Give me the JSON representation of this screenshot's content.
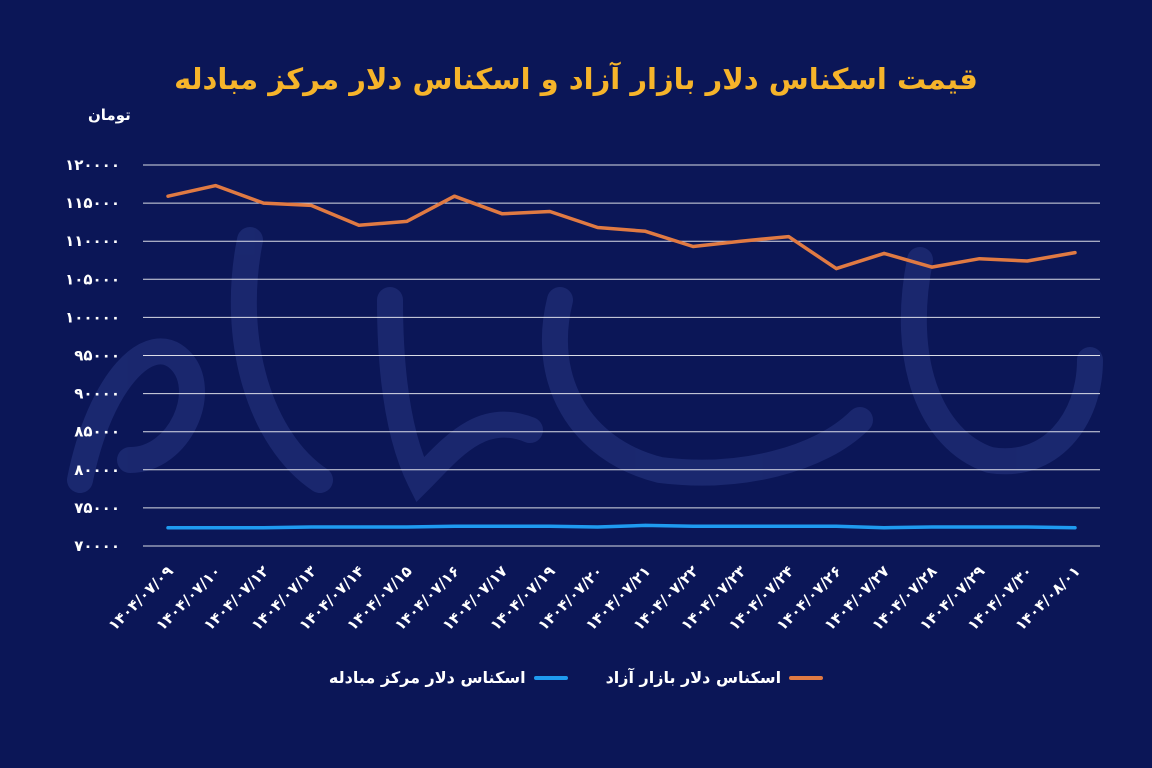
{
  "colors": {
    "background": "#0b1657",
    "title": "#f6b42a",
    "grid": "#ffffff",
    "free_market": "#e07a43",
    "exchange_center": "#1f9bf0",
    "text": "#ffffff"
  },
  "chart_data": {
    "type": "line",
    "title": "قیمت اسکناس دلار بازار آزاد و اسکناس دلار مرکز مبادله",
    "ylabel": "تومان",
    "xlabel": "",
    "ylim": [
      70000,
      120000
    ],
    "yticks": [
      70000,
      75000,
      80000,
      85000,
      90000,
      95000,
      100000,
      105000,
      110000,
      115000,
      120000
    ],
    "ytick_labels": [
      "۷۰۰۰۰",
      "۷۵۰۰۰",
      "۸۰۰۰۰",
      "۸۵۰۰۰",
      "۹۰۰۰۰",
      "۹۵۰۰۰",
      "۱۰۰۰۰۰",
      "۱۰۵۰۰۰",
      "۱۱۰۰۰۰",
      "۱۱۵۰۰۰",
      "۱۲۰۰۰۰"
    ],
    "grid": true,
    "legend_position": "bottom-center",
    "categories": [
      "۱۴۰۴/۰۷/۰۹",
      "۱۴۰۴/۰۷/۱۰",
      "۱۴۰۴/۰۷/۱۲",
      "۱۴۰۴/۰۷/۱۳",
      "۱۴۰۴/۰۷/۱۴",
      "۱۴۰۴/۰۷/۱۵",
      "۱۴۰۴/۰۷/۱۶",
      "۱۴۰۴/۰۷/۱۷",
      "۱۴۰۴/۰۷/۱۹",
      "۱۴۰۴/۰۷/۲۰",
      "۱۴۰۴/۰۷/۲۱",
      "۱۴۰۴/۰۷/۲۲",
      "۱۴۰۴/۰۷/۲۳",
      "۱۴۰۴/۰۷/۲۴",
      "۱۴۰۴/۰۷/۲۶",
      "۱۴۰۴/۰۷/۲۷",
      "۱۴۰۴/۰۷/۲۸",
      "۱۴۰۴/۰۷/۲۹",
      "۱۴۰۴/۰۷/۳۰",
      "۱۴۰۴/۰۸/۰۱"
    ],
    "series": [
      {
        "name": "اسکناس دلار بازار آزاد",
        "color": "#e07a43",
        "values": [
          115900,
          117300,
          115000,
          114700,
          112100,
          112600,
          115900,
          113600,
          113900,
          111800,
          111300,
          109300,
          110000,
          110600,
          106400,
          108400,
          106600,
          107700,
          107400,
          108500
        ]
      },
      {
        "name": "اسکناس دلار مرکز مبادله",
        "color": "#1f9bf0",
        "values": [
          72400,
          72400,
          72400,
          72500,
          72500,
          72500,
          72600,
          72600,
          72600,
          72500,
          72700,
          72600,
          72600,
          72600,
          72600,
          72400,
          72500,
          72500,
          72500,
          72400
        ]
      }
    ]
  },
  "legend": {
    "items": [
      {
        "label": "اسکناس دلار بازار آزاد",
        "color": "#e07a43"
      },
      {
        "label": "اسکناس دلار مرکز مبادله",
        "color": "#1f9bf0"
      }
    ]
  }
}
